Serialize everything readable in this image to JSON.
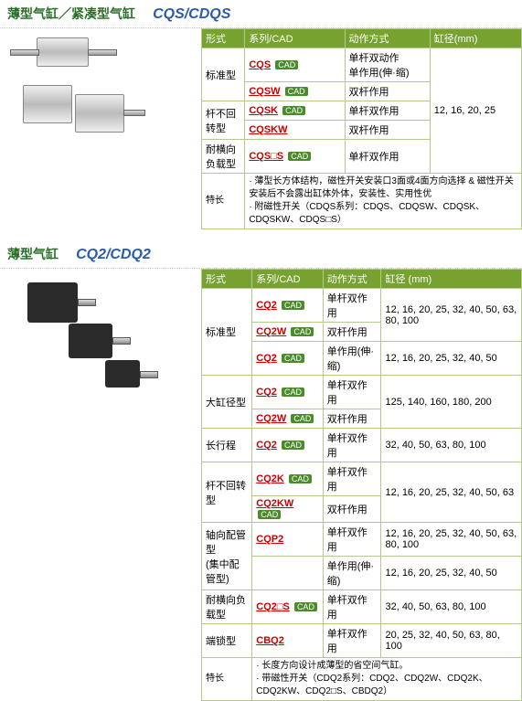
{
  "section1": {
    "title": "薄型气缸／紧凑型气缸",
    "code": "CQS/CDQS",
    "headers": [
      "形式",
      "系列/CAD",
      "动作方式",
      "缸径(mm)"
    ],
    "bore": "12, 16, 20, 25",
    "rows": [
      {
        "type": "标准型",
        "typeRowspan": 2,
        "series": "CQS",
        "cad": true,
        "action": "单杆双动作\n单作用(伸·缩)"
      },
      {
        "series": "CQSW",
        "cad": true,
        "action": "双杆作用"
      },
      {
        "type": "杆不回转型",
        "typeRowspan": 2,
        "series": "CQSK",
        "cad": true,
        "action": "单杆双作用"
      },
      {
        "series": "CQSKW",
        "cad": false,
        "action": "双杆作用"
      },
      {
        "type": "耐横向负载型",
        "typeRowspan": 1,
        "series": "CQS□S",
        "cad": true,
        "action": "单杆双作用"
      }
    ],
    "features_label": "特长",
    "features": "· 薄型长方体结构，磁性开关安装口3面或4面方向选择 & 磁性开关安装后不会露出缸体外体，安装性、实用性优\n· 附磁性开关（CDQS系列：CDQS、CDQSW、CDQSK、CDQSKW、CDQS□S）"
  },
  "section2": {
    "title": "薄型气缸",
    "code": "CQ2/CDQ2",
    "headers": [
      "形式",
      "系列/CAD",
      "动作方式",
      "缸径 (mm)"
    ],
    "rows": [
      {
        "type": "标准型",
        "typeRowspan": 3,
        "series": "CQ2",
        "cad": true,
        "action": "单杆双作用",
        "bore": "12, 16, 20, 25, 32, 40, 50, 63, 80, 100"
      },
      {
        "series": "CQ2W",
        "cad": true,
        "action": "双杆作用",
        "bore": ""
      },
      {
        "series": "CQ2",
        "cad": true,
        "action": "单作用(伸·缩)",
        "bore": "12, 16, 20, 25, 32, 40, 50"
      },
      {
        "type": "大缸径型",
        "typeRowspan": 2,
        "series": "CQ2",
        "cad": true,
        "action": "单杆双作用",
        "bore": "125, 140, 160, 180, 200"
      },
      {
        "series": "CQ2W",
        "cad": true,
        "action": "双杆作用",
        "bore": ""
      },
      {
        "type": "长行程",
        "typeRowspan": 1,
        "series": "CQ2",
        "cad": true,
        "action": "单杆双作用",
        "bore": "32, 40, 50, 63, 80, 100"
      },
      {
        "type": "杆不回转型",
        "typeRowspan": 2,
        "series": "CQ2K",
        "cad": true,
        "action": "单杆双作用",
        "bore": "12, 16, 20, 25, 32, 40, 50, 63"
      },
      {
        "series": "CQ2KW",
        "cad": true,
        "action": "双杆作用",
        "bore": ""
      },
      {
        "type": "轴向配管型\n(集中配管型)",
        "typeRowspan": 2,
        "series": "CQP2",
        "cad": false,
        "action": "单杆双作用",
        "bore": "12, 16, 20, 25, 32, 40, 50, 63, 80, 100"
      },
      {
        "series": "",
        "cad": false,
        "action": "单作用(伸·缩)",
        "bore": "12, 16, 20, 25, 32, 40, 50"
      },
      {
        "type": "耐横向负载型",
        "typeRowspan": 1,
        "series": "CQ2□S",
        "cad": true,
        "action": "单杆双作用",
        "bore": "32, 40, 50, 63, 80, 100"
      },
      {
        "type": "端锁型",
        "typeRowspan": 1,
        "series": "CBQ2",
        "cad": false,
        "action": "单杆双作用",
        "bore": "20, 25, 32, 40, 50, 63, 80, 100"
      }
    ],
    "features_label": "特长",
    "features": "· 长度方向设计成薄型的省空间气缸。\n· 带磁性开关（CDQ2系列：CDQ2、CDQ2W、CDQ2K、CDQ2KW、CDQ2□S、CBDQ2）"
  },
  "cad_label": "CAD"
}
